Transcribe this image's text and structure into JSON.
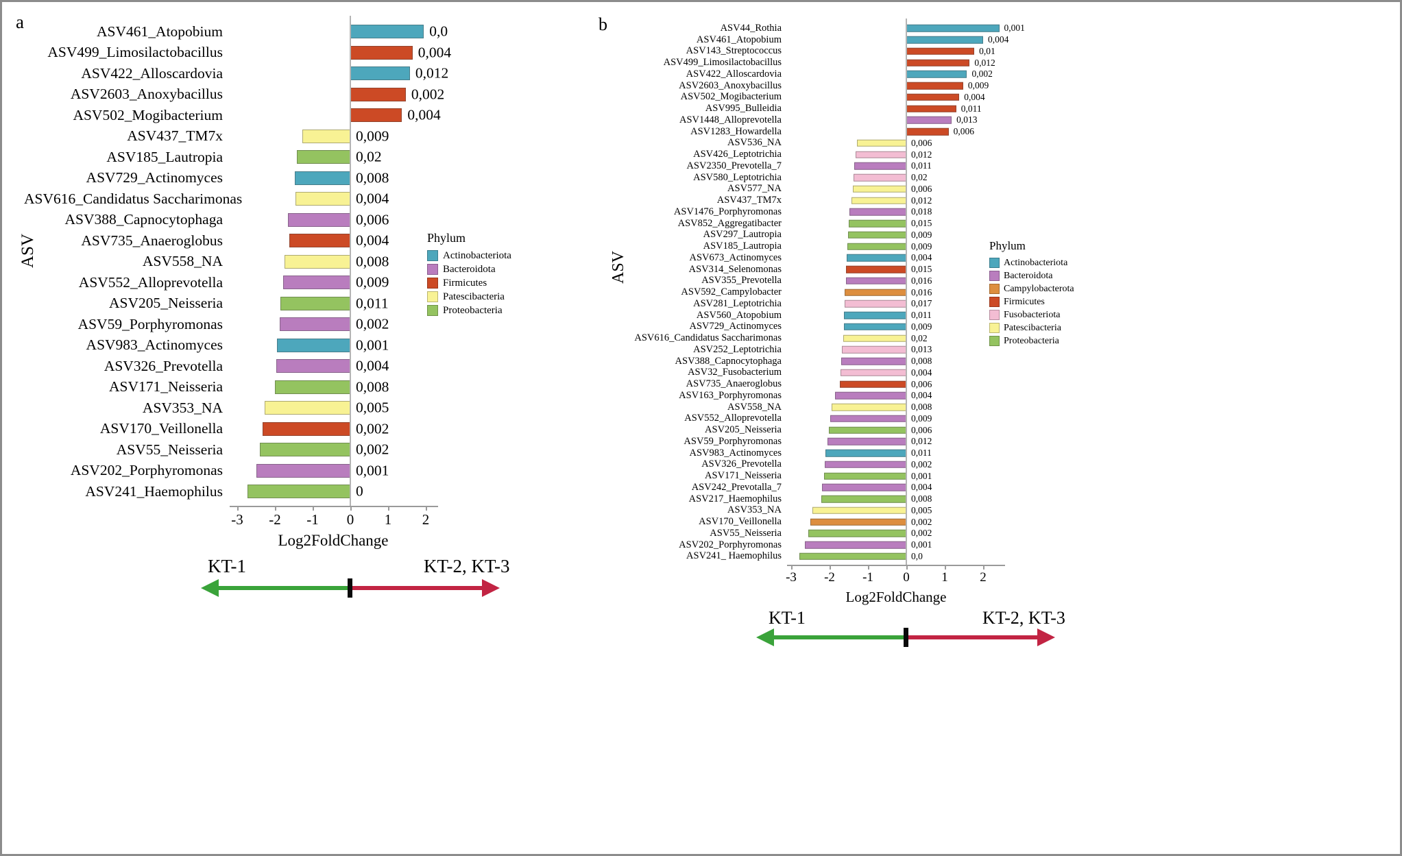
{
  "phylum_colors": {
    "Actinobacteriota": "#4da7bc",
    "Bacteroidota": "#b97dbe",
    "Campylobacterota": "#dd8e3f",
    "Firmicutes": "#cc4a25",
    "Fusobacteriota": "#f3bdd3",
    "Patescibacteria": "#f8f294",
    "Proteobacteria": "#94c360"
  },
  "arrow_colors": {
    "left": "#3aa33a",
    "right": "#c22443"
  },
  "chart_data": [
    {
      "type": "bar",
      "orientation": "horizontal",
      "panel_label": "a",
      "title": "",
      "xlabel": "Log2FoldChange",
      "ylabel": "ASV",
      "xlim": [
        -3,
        2
      ],
      "x_ticks": [
        -3,
        -2,
        -1,
        0,
        1,
        2
      ],
      "grid": false,
      "legend_title": "Phylum",
      "legend_position": "right",
      "legend_phyla": [
        "Actinobacteriota",
        "Bacteroidota",
        "Firmicutes",
        "Patescibacteria",
        "Proteobacteria"
      ],
      "annotation": {
        "left": "KT-1",
        "right": "KT-2, KT-3"
      },
      "bars": [
        {
          "label": "ASV461_Atopobium",
          "phylum": "Actinobacteriota",
          "log2fc": 1.95,
          "p": "0,0"
        },
        {
          "label": "ASV499_Limosilactobacillus",
          "phylum": "Firmicutes",
          "log2fc": 1.65,
          "p": "0,004"
        },
        {
          "label": "ASV422_Alloscardovia",
          "phylum": "Actinobacteriota",
          "log2fc": 1.58,
          "p": "0,012"
        },
        {
          "label": "ASV2603_Anoxybacillus",
          "phylum": "Firmicutes",
          "log2fc": 1.47,
          "p": "0,002"
        },
        {
          "label": "ASV502_Mogibacterium",
          "phylum": "Firmicutes",
          "log2fc": 1.37,
          "p": "0,004"
        },
        {
          "label": "ASV437_TM7x",
          "phylum": "Patescibacteria",
          "log2fc": -1.28,
          "p": "0,009"
        },
        {
          "label": "ASV185_Lautropia",
          "phylum": "Proteobacteria",
          "log2fc": -1.42,
          "p": "0,02"
        },
        {
          "label": "ASV729_Actinomyces",
          "phylum": "Actinobacteriota",
          "log2fc": -1.48,
          "p": "0,008"
        },
        {
          "label": "ASV616_Candidatus Saccharimonas",
          "phylum": "Patescibacteria",
          "log2fc": -1.45,
          "p": "0,004"
        },
        {
          "label": "ASV388_Capnocytophaga",
          "phylum": "Bacteroidota",
          "log2fc": -1.65,
          "p": "0,006"
        },
        {
          "label": "ASV735_Anaeroglobus",
          "phylum": "Firmicutes",
          "log2fc": -1.62,
          "p": "0,004"
        },
        {
          "label": "ASV558_NA",
          "phylum": "Patescibacteria",
          "log2fc": -1.75,
          "p": "0,008"
        },
        {
          "label": "ASV552_Alloprevotella",
          "phylum": "Bacteroidota",
          "log2fc": -1.78,
          "p": "0,009"
        },
        {
          "label": "ASV205_Neisseria",
          "phylum": "Proteobacteria",
          "log2fc": -1.85,
          "p": "0,011"
        },
        {
          "label": "ASV59_Porphyromonas",
          "phylum": "Bacteroidota",
          "log2fc": -1.88,
          "p": "0,002"
        },
        {
          "label": "ASV983_Actinomyces",
          "phylum": "Actinobacteriota",
          "log2fc": -1.95,
          "p": "0,001"
        },
        {
          "label": "ASV326_Prevotella",
          "phylum": "Bacteroidota",
          "log2fc": -1.97,
          "p": "0,004"
        },
        {
          "label": "ASV171_Neisseria",
          "phylum": "Proteobacteria",
          "log2fc": -2.0,
          "p": "0,008"
        },
        {
          "label": "ASV353_NA",
          "phylum": "Patescibacteria",
          "log2fc": -2.27,
          "p": "0,005"
        },
        {
          "label": "ASV170_Veillonella",
          "phylum": "Firmicutes",
          "log2fc": -2.33,
          "p": "0,002"
        },
        {
          "label": "ASV55_Neisseria",
          "phylum": "Proteobacteria",
          "log2fc": -2.4,
          "p": "0,002"
        },
        {
          "label": "ASV202_Porphyromonas",
          "phylum": "Bacteroidota",
          "log2fc": -2.5,
          "p": "0,001"
        },
        {
          "label": "ASV241_Haemophilus",
          "phylum": "Proteobacteria",
          "log2fc": -2.72,
          "p": "0"
        }
      ]
    },
    {
      "type": "bar",
      "orientation": "horizontal",
      "panel_label": "b",
      "title": "",
      "xlabel": "Log2FoldChange",
      "ylabel": "ASV",
      "xlim": [
        -3,
        2
      ],
      "x_ticks": [
        -3,
        -2,
        -1,
        0,
        1,
        2
      ],
      "grid": false,
      "legend_title": "Phylum",
      "legend_position": "right",
      "legend_phyla": [
        "Actinobacteriota",
        "Bacteroidota",
        "Campylobacterota",
        "Firmicutes",
        "Fusobacteriota",
        "Patescibacteria",
        "Proteobacteria"
      ],
      "annotation": {
        "left": "KT-1",
        "right": "KT-2, KT-3"
      },
      "bars": [
        {
          "label": "ASV44_Rothia",
          "phylum": "Actinobacteriota",
          "log2fc": 2.42,
          "p": "0,001"
        },
        {
          "label": "ASV461_Atopobium",
          "phylum": "Actinobacteriota",
          "log2fc": 2.0,
          "p": "0,004"
        },
        {
          "label": "ASV143_Streptococcus",
          "phylum": "Firmicutes",
          "log2fc": 1.77,
          "p": "0,01"
        },
        {
          "label": "ASV499_Limosilactobacillus",
          "phylum": "Firmicutes",
          "log2fc": 1.65,
          "p": "0,012"
        },
        {
          "label": "ASV422_Alloscardovia",
          "phylum": "Actinobacteriota",
          "log2fc": 1.58,
          "p": "0,002"
        },
        {
          "label": "ASV2603_Anoxybacillus",
          "phylum": "Firmicutes",
          "log2fc": 1.48,
          "p": "0,009"
        },
        {
          "label": "ASV502_Mogibacterium",
          "phylum": "Firmicutes",
          "log2fc": 1.38,
          "p": "0,004"
        },
        {
          "label": "ASV995_Bulleidia",
          "phylum": "Firmicutes",
          "log2fc": 1.3,
          "p": "0,011"
        },
        {
          "label": "ASV1448_Alloprevotella",
          "phylum": "Bacteroidota",
          "log2fc": 1.18,
          "p": "0,013"
        },
        {
          "label": "ASV1283_Howardella",
          "phylum": "Firmicutes",
          "log2fc": 1.1,
          "p": "0,006"
        },
        {
          "label": "ASV536_NA",
          "phylum": "Patescibacteria",
          "log2fc": -1.28,
          "p": "0,006"
        },
        {
          "label": "ASV426_Leptotrichia",
          "phylum": "Fusobacteriota",
          "log2fc": -1.33,
          "p": "0,012"
        },
        {
          "label": "ASV2350_Prevotella_7",
          "phylum": "Bacteroidota",
          "log2fc": -1.36,
          "p": "0,011"
        },
        {
          "label": "ASV580_Leptotrichia",
          "phylum": "Fusobacteriota",
          "log2fc": -1.38,
          "p": "0,02"
        },
        {
          "label": "ASV577_NA",
          "phylum": "Patescibacteria",
          "log2fc": -1.4,
          "p": "0,006"
        },
        {
          "label": "ASV437_TM7x",
          "phylum": "Patescibacteria",
          "log2fc": -1.42,
          "p": "0,012"
        },
        {
          "label": "ASV1476_Porphyromonas",
          "phylum": "Bacteroidota",
          "log2fc": -1.48,
          "p": "0,018"
        },
        {
          "label": "ASV852_Aggregatibacter",
          "phylum": "Proteobacteria",
          "log2fc": -1.5,
          "p": "0,015"
        },
        {
          "label": "ASV297_Lautropia",
          "phylum": "Proteobacteria",
          "log2fc": -1.52,
          "p": "0,009"
        },
        {
          "label": "ASV185_Lautropia",
          "phylum": "Proteobacteria",
          "log2fc": -1.54,
          "p": "0,009"
        },
        {
          "label": "ASV673_Actinomyces",
          "phylum": "Actinobacteriota",
          "log2fc": -1.55,
          "p": "0,004"
        },
        {
          "label": "ASV314_Selenomonas",
          "phylum": "Firmicutes",
          "log2fc": -1.57,
          "p": "0,015"
        },
        {
          "label": "ASV355_Prevotella",
          "phylum": "Bacteroidota",
          "log2fc": -1.58,
          "p": "0,016"
        },
        {
          "label": "ASV592_Campylobacter",
          "phylum": "Campylobacterota",
          "log2fc": -1.6,
          "p": "0,016"
        },
        {
          "label": "ASV281_Leptotrichia",
          "phylum": "Fusobacteriota",
          "log2fc": -1.61,
          "p": "0,017"
        },
        {
          "label": "ASV560_Atopobium",
          "phylum": "Actinobacteriota",
          "log2fc": -1.62,
          "p": "0,011"
        },
        {
          "label": "ASV729_Actinomyces",
          "phylum": "Actinobacteriota",
          "log2fc": -1.63,
          "p": "0,009"
        },
        {
          "label": "ASV616_Candidatus Saccharimonas",
          "phylum": "Patescibacteria",
          "log2fc": -1.65,
          "p": "0,02"
        },
        {
          "label": "ASV252_Leptotrichia",
          "phylum": "Fusobacteriota",
          "log2fc": -1.68,
          "p": "0,013"
        },
        {
          "label": "ASV388_Capnocytophaga",
          "phylum": "Bacteroidota",
          "log2fc": -1.7,
          "p": "0,008"
        },
        {
          "label": "ASV32_Fusobacterium",
          "phylum": "Fusobacteriota",
          "log2fc": -1.72,
          "p": "0,004"
        },
        {
          "label": "ASV735_Anaeroglobus",
          "phylum": "Firmicutes",
          "log2fc": -1.74,
          "p": "0,006"
        },
        {
          "label": "ASV163_Porphyromonas",
          "phylum": "Bacteroidota",
          "log2fc": -1.85,
          "p": "0,004"
        },
        {
          "label": "ASV558_NA",
          "phylum": "Patescibacteria",
          "log2fc": -1.95,
          "p": "0,008"
        },
        {
          "label": "ASV552_Alloprevotella",
          "phylum": "Bacteroidota",
          "log2fc": -1.98,
          "p": "0,009"
        },
        {
          "label": "ASV205_Neisseria",
          "phylum": "Proteobacteria",
          "log2fc": -2.02,
          "p": "0,006"
        },
        {
          "label": "ASV59_Porphyromonas",
          "phylum": "Bacteroidota",
          "log2fc": -2.05,
          "p": "0,012"
        },
        {
          "label": "ASV983_Actinomyces",
          "phylum": "Actinobacteriota",
          "log2fc": -2.1,
          "p": "0,011"
        },
        {
          "label": "ASV326_Prevotella",
          "phylum": "Bacteroidota",
          "log2fc": -2.12,
          "p": "0,002"
        },
        {
          "label": "ASV171_Neisseria",
          "phylum": "Proteobacteria",
          "log2fc": -2.15,
          "p": "0,001"
        },
        {
          "label": "ASV242_Prevotalla_7",
          "phylum": "Bacteroidota",
          "log2fc": -2.2,
          "p": "0,004"
        },
        {
          "label": "ASV217_Haemophilus",
          "phylum": "Proteobacteria",
          "log2fc": -2.22,
          "p": "0,008"
        },
        {
          "label": "ASV353_NA",
          "phylum": "Patescibacteria",
          "log2fc": -2.45,
          "p": "0,005"
        },
        {
          "label": "ASV170_Veillonella",
          "phylum": "Campylobacterota",
          "log2fc": -2.5,
          "p": "0,002"
        },
        {
          "label": "ASV55_Neisseria",
          "phylum": "Proteobacteria",
          "log2fc": -2.55,
          "p": "0,002"
        },
        {
          "label": "ASV202_Porphyromonas",
          "phylum": "Bacteroidota",
          "log2fc": -2.65,
          "p": "0,001"
        },
        {
          "label": "ASV241_ Haemophilus",
          "phylum": "Proteobacteria",
          "log2fc": -2.78,
          "p": "0,0"
        }
      ]
    }
  ]
}
